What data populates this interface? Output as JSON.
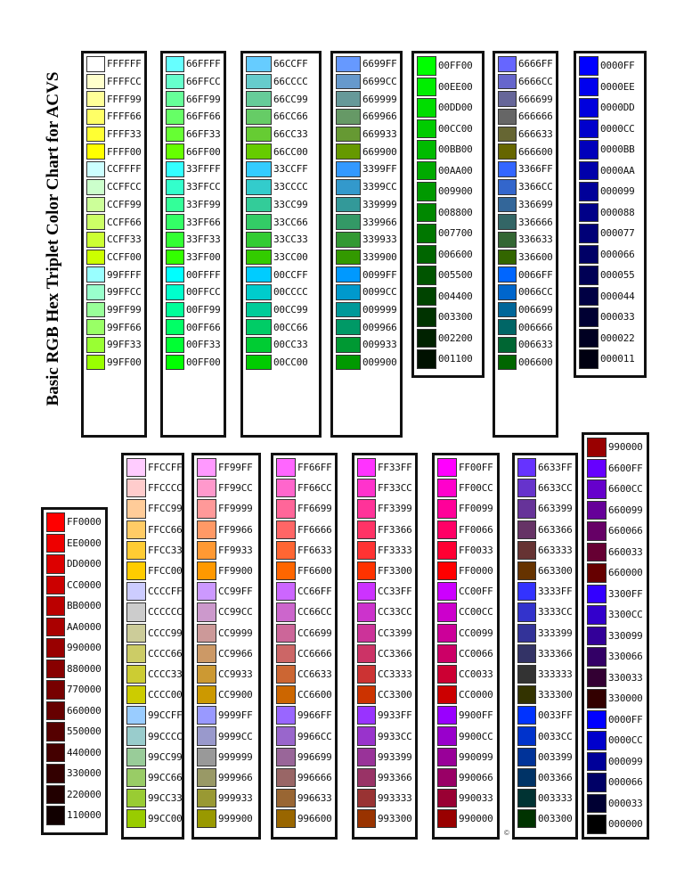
{
  "title": "Basic RGB Hex Triplet Color Chart for ACVS",
  "footer": "©",
  "columns": [
    {
      "codes": [
        "FFFFFF",
        "FFFFCC",
        "FFFF99",
        "FFFF66",
        "FFFF33",
        "FFFF00",
        "CCFFFF",
        "CCFFCC",
        "CCFF99",
        "CCFF66",
        "CCFF33",
        "CCFF00",
        "99FFFF",
        "99FFCC",
        "99FF99",
        "99FF66",
        "99FF33",
        "99FF00"
      ]
    },
    {
      "codes": [
        "66FFFF",
        "66FFCC",
        "66FF99",
        "66FF66",
        "66FF33",
        "66FF00",
        "33FFFF",
        "33FFCC",
        "33FF99",
        "33FF66",
        "33FF33",
        "33FF00",
        "00FFFF",
        "00FFCC",
        "00FF99",
        "00FF66",
        "00FF33",
        "00FF00"
      ]
    },
    {
      "codes": [
        "66CCFF",
        "66CCCC",
        "66CC99",
        "66CC66",
        "66CC33",
        "66CC00",
        "33CCFF",
        "33CCCC",
        "33CC99",
        "33CC66",
        "33CC33",
        "33CC00",
        "00CCFF",
        "00CCCC",
        "00CC99",
        "00CC66",
        "00CC33",
        "00CC00"
      ]
    },
    {
      "codes": [
        "6699FF",
        "6699CC",
        "669999",
        "669966",
        "669933",
        "669900",
        "3399FF",
        "3399CC",
        "339999",
        "339966",
        "339933",
        "339900",
        "0099FF",
        "0099CC",
        "009999",
        "009966",
        "009933",
        "009900"
      ]
    },
    {
      "codes": [
        "00FF00",
        "00EE00",
        "00DD00",
        "00CC00",
        "00BB00",
        "00AA00",
        "009900",
        "008800",
        "007700",
        "006600",
        "005500",
        "004400",
        "003300",
        "002200",
        "001100"
      ]
    },
    {
      "codes": [
        "6666FF",
        "6666CC",
        "666699",
        "666666",
        "666633",
        "666600",
        "3366FF",
        "3366CC",
        "336699",
        "336666",
        "336633",
        "336600",
        "0066FF",
        "0066CC",
        "006699",
        "006666",
        "006633",
        "006600"
      ]
    },
    {
      "codes": [
        "0000FF",
        "0000EE",
        "0000DD",
        "0000CC",
        "0000BB",
        "0000AA",
        "000099",
        "000088",
        "000077",
        "000066",
        "000055",
        "000044",
        "000033",
        "000022",
        "000011"
      ]
    },
    {
      "codes": [
        "FF0000",
        "EE0000",
        "DD0000",
        "CC0000",
        "BB0000",
        "AA0000",
        "990000",
        "880000",
        "770000",
        "660000",
        "550000",
        "440000",
        "330000",
        "220000",
        "110000"
      ]
    },
    {
      "codes": [
        "FFCCFF",
        "FFCCCC",
        "FFCC99",
        "FFCC66",
        "FFCC33",
        "FFCC00",
        "CCCCFF",
        "CCCCCC",
        "CCCC99",
        "CCCC66",
        "CCCC33",
        "CCCC00",
        "99CCFF",
        "99CCCC",
        "99CC99",
        "99CC66",
        "99CC33",
        "99CC00"
      ]
    },
    {
      "codes": [
        "FF99FF",
        "FF99CC",
        "FF9999",
        "FF9966",
        "FF9933",
        "FF9900",
        "CC99FF",
        "CC99CC",
        "CC9999",
        "CC9966",
        "CC9933",
        "CC9900",
        "9999FF",
        "9999CC",
        "999999",
        "999966",
        "999933",
        "999900"
      ]
    },
    {
      "codes": [
        "FF66FF",
        "FF66CC",
        "FF6699",
        "FF6666",
        "FF6633",
        "FF6600",
        "CC66FF",
        "CC66CC",
        "CC6699",
        "CC6666",
        "CC6633",
        "CC6600",
        "9966FF",
        "9966CC",
        "996699",
        "996666",
        "996633",
        "996600"
      ]
    },
    {
      "codes": [
        "FF33FF",
        "FF33CC",
        "FF3399",
        "FF3366",
        "FF3333",
        "FF3300",
        "CC33FF",
        "CC33CC",
        "CC3399",
        "CC3366",
        "CC3333",
        "CC3300",
        "9933FF",
        "9933CC",
        "993399",
        "993366",
        "993333",
        "993300"
      ]
    },
    {
      "codes": [
        "FF00FF",
        "FF00CC",
        "FF0099",
        "FF0066",
        "FF0033",
        "FF0000",
        "CC00FF",
        "CC00CC",
        "CC0099",
        "CC0066",
        "CC0033",
        "CC0000",
        "9900FF",
        "9900CC",
        "990099",
        "990066",
        "990033",
        "990000"
      ]
    },
    {
      "codes": [
        "6633FF",
        "6633CC",
        "663399",
        "663366",
        "663333",
        "663300",
        "3333FF",
        "3333CC",
        "333399",
        "333366",
        "333333",
        "333300",
        "0033FF",
        "0033CC",
        "003399",
        "003366",
        "003333",
        "003300"
      ]
    },
    {
      "codes": [
        "990000",
        "6600FF",
        "6600CC",
        "660099",
        "660066",
        "660033",
        "660000",
        "3300FF",
        "3300CC",
        "330099",
        "330066",
        "330033",
        "330000",
        "0000FF",
        "0000CC",
        "000099",
        "000066",
        "000033",
        "000000"
      ]
    }
  ]
}
